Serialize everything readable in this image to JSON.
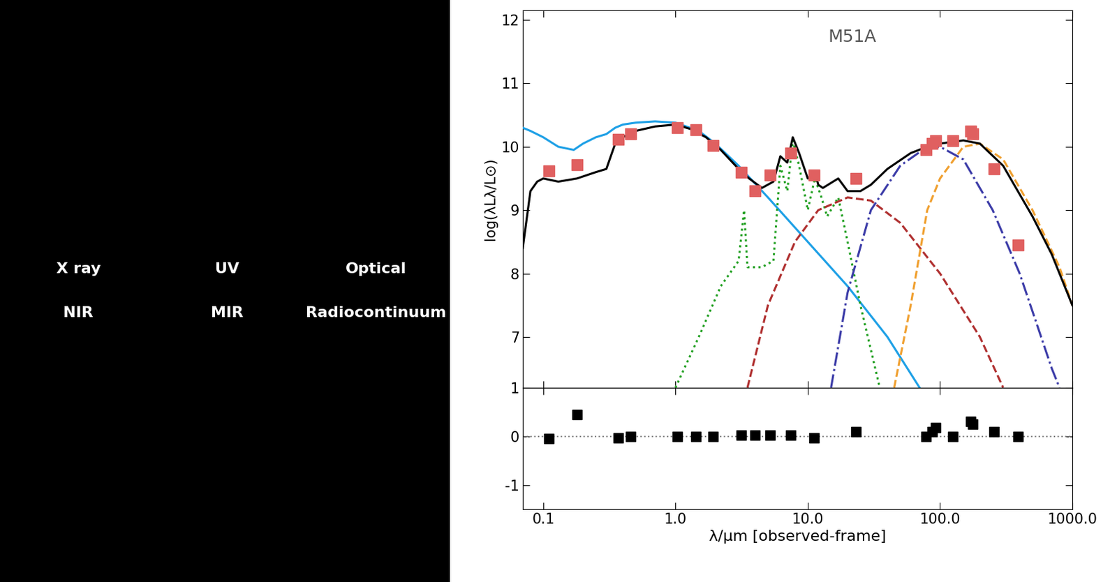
{
  "images": {
    "labels": [
      "X ray",
      "UV",
      "Optical",
      "NIR",
      "MIR",
      "Radiocontinuum"
    ]
  },
  "chart_data": [
    {
      "type": "line",
      "title": "M51A",
      "y_label": "log(λLλ/L⊙)",
      "log": "x",
      "xlim": [
        0.07,
        1000
      ],
      "xticks": [
        0.1,
        {
          "value": 1,
          "label": "1.0"
        },
        {
          "value": 10,
          "label": "10.0"
        },
        {
          "value": 100,
          "label": "100.0"
        },
        {
          "value": 1000,
          "label": "1000.0"
        }
      ],
      "ylim": [
        6.2,
        12.15
      ],
      "yticks": [
        7,
        8,
        9,
        10,
        11,
        12
      ],
      "tick_labels": "y",
      "series": [
        {
          "type": "line",
          "color": "#1ea0e6",
          "line_style": "solid",
          "x": [
            0.07,
            0.08,
            0.1,
            0.13,
            0.17,
            0.2,
            0.25,
            0.3,
            0.35,
            0.4,
            0.5,
            0.7,
            1.0,
            1.5,
            2.0,
            3.0,
            5.0,
            10.0,
            20.0,
            40.0,
            70.0
          ],
          "values": [
            10.3,
            10.25,
            10.15,
            10.0,
            9.95,
            10.05,
            10.15,
            10.2,
            10.3,
            10.35,
            10.38,
            10.4,
            10.38,
            10.25,
            10.05,
            9.7,
            9.2,
            8.5,
            7.8,
            7.0,
            6.2
          ]
        },
        {
          "type": "line",
          "color": "#22a022",
          "line_style": "dotted",
          "x": [
            1.0,
            1.5,
            2.2,
            3.0,
            3.3,
            3.5,
            4.5,
            5.5,
            6.2,
            7.0,
            7.7,
            8.6,
            10.0,
            11.3,
            12.7,
            14.0,
            17.0,
            20.0,
            25.0,
            35.0
          ],
          "values": [
            6.2,
            7.0,
            7.8,
            8.2,
            9.0,
            8.1,
            8.1,
            8.2,
            9.7,
            9.3,
            10.1,
            9.7,
            9.0,
            9.5,
            9.2,
            8.9,
            9.2,
            8.5,
            7.5,
            6.2
          ]
        },
        {
          "type": "line",
          "color": "#b03030",
          "line_style": "dashed",
          "x": [
            3.5,
            5.0,
            8.0,
            12.0,
            20.0,
            30.0,
            50.0,
            100.0,
            200.0,
            300.0
          ],
          "values": [
            6.2,
            7.5,
            8.5,
            9.0,
            9.2,
            9.15,
            8.8,
            8.0,
            7.0,
            6.2
          ]
        },
        {
          "type": "line",
          "color": "#3c3ca8",
          "line_style": "dashdot",
          "x": [
            15.0,
            20.0,
            30.0,
            50.0,
            80.0,
            100.0,
            150.0,
            250.0,
            400.0,
            700.0,
            800.0
          ],
          "values": [
            6.2,
            7.7,
            9.0,
            9.7,
            10.0,
            10.0,
            9.8,
            9.0,
            8.0,
            6.5,
            6.2
          ]
        },
        {
          "type": "line",
          "color": "#f0a030",
          "line_style": "dashed",
          "x": [
            45.0,
            60.0,
            80.0,
            100.0,
            150.0,
            200.0,
            300.0,
            500.0,
            800.0,
            1000.0
          ],
          "values": [
            6.2,
            7.5,
            9.0,
            9.5,
            10.0,
            10.05,
            9.8,
            9.0,
            8.1,
            7.5
          ]
        },
        {
          "type": "line",
          "color": "#000000",
          "line_style": "solid",
          "x": [
            0.07,
            0.08,
            0.09,
            0.1,
            0.13,
            0.18,
            0.25,
            0.3,
            0.35,
            0.4,
            0.5,
            0.7,
            1.0,
            1.3,
            1.7,
            2.2,
            3.0,
            3.6,
            4.5,
            5.5,
            6.2,
            7.0,
            7.7,
            8.6,
            10.0,
            11.3,
            12.0,
            13.0,
            17.0,
            20.0,
            25.0,
            30.0,
            40.0,
            60.0,
            80.0,
            100.0,
            150.0,
            200.0,
            300.0,
            500.0,
            700.0,
            1000.0
          ],
          "values": [
            8.4,
            9.3,
            9.45,
            9.5,
            9.45,
            9.5,
            9.6,
            9.65,
            10.05,
            10.15,
            10.25,
            10.32,
            10.35,
            10.28,
            10.15,
            9.95,
            9.65,
            9.5,
            9.35,
            9.45,
            9.85,
            9.75,
            10.15,
            9.9,
            9.5,
            9.6,
            9.4,
            9.35,
            9.5,
            9.3,
            9.3,
            9.4,
            9.65,
            9.9,
            10.0,
            10.05,
            10.1,
            10.05,
            9.7,
            8.9,
            8.3,
            7.5
          ]
        },
        {
          "type": "scatter",
          "color": "#e06060",
          "marker": "square",
          "x": [
            0.11,
            0.18,
            0.37,
            0.46,
            1.03,
            1.43,
            1.92,
            3.15,
            4.0,
            5.2,
            7.4,
            11.2,
            23.0,
            78.0,
            87.0,
            93.0,
            125.0,
            170.0,
            177.0,
            257.0,
            390.0
          ],
          "values": [
            9.62,
            9.72,
            10.12,
            10.2,
            10.3,
            10.27,
            10.02,
            9.6,
            9.3,
            9.55,
            9.9,
            9.55,
            9.5,
            9.95,
            10.05,
            10.1,
            10.1,
            10.25,
            10.2,
            9.65,
            8.45
          ]
        }
      ]
    },
    {
      "type": "scatter",
      "x_label": "λ/μm [observed-frame]",
      "color": "#000000",
      "marker": "square",
      "log": "x",
      "xlim": [
        0.07,
        1000
      ],
      "xticks": [
        0.1,
        {
          "value": 1,
          "label": "1.0"
        },
        {
          "value": 10,
          "label": "10.0"
        },
        {
          "value": 100,
          "label": "100.0"
        },
        {
          "value": 1000,
          "label": "1000.0"
        }
      ],
      "ylim": [
        -1.5,
        1.0
      ],
      "yticks": [
        -1,
        0,
        1
      ],
      "baseline": 0,
      "x": [
        0.11,
        0.18,
        0.37,
        0.46,
        1.03,
        1.43,
        1.92,
        3.15,
        4.0,
        5.2,
        7.4,
        11.2,
        23.0,
        78.0,
        87.0,
        93.0,
        125.0,
        170.0,
        177.0,
        257.0,
        390.0
      ],
      "values": [
        -0.05,
        0.45,
        -0.03,
        0.0,
        0.0,
        0.0,
        0.0,
        0.02,
        0.02,
        0.03,
        0.02,
        -0.03,
        0.1,
        0.0,
        0.1,
        0.18,
        0.0,
        0.3,
        0.25,
        0.1,
        0.0
      ]
    }
  ]
}
